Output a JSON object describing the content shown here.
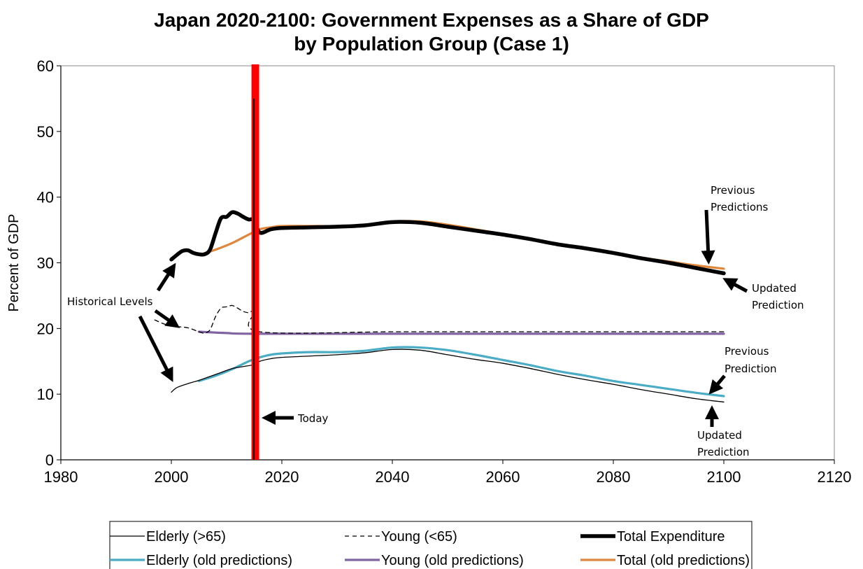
{
  "chart_data": {
    "type": "line",
    "title": [
      "Japan 2020-2100: Government Expenses as a Share of GDP",
      "by Population Group (Case 1)"
    ],
    "ylabel": "Percent of GDP",
    "xlabel": "",
    "xlim": [
      1980,
      2120
    ],
    "ylim": [
      0,
      60
    ],
    "xticks": [
      1980,
      2000,
      2020,
      2040,
      2060,
      2080,
      2100,
      2120
    ],
    "yticks": [
      0,
      10,
      20,
      30,
      40,
      50,
      60
    ],
    "grid": false,
    "series": [
      {
        "name": "Elderly (>65)",
        "color": "#000000",
        "dash": "solid",
        "weight": "thin",
        "points": [
          [
            2000,
            10.3
          ],
          [
            2001,
            11.0
          ],
          [
            2003,
            11.6
          ],
          [
            2005,
            12.1
          ],
          [
            2007,
            12.7
          ],
          [
            2009,
            13.3
          ],
          [
            2011,
            13.9
          ],
          [
            2013,
            14.2
          ],
          [
            2015,
            14.5
          ],
          [
            2016,
            15.0
          ],
          [
            2018,
            15.4
          ],
          [
            2020,
            15.6
          ],
          [
            2025,
            15.8
          ],
          [
            2030,
            16.0
          ],
          [
            2035,
            16.3
          ],
          [
            2040,
            16.8
          ],
          [
            2045,
            16.7
          ],
          [
            2050,
            16.0
          ],
          [
            2055,
            15.3
          ],
          [
            2060,
            14.7
          ],
          [
            2065,
            13.9
          ],
          [
            2070,
            13.0
          ],
          [
            2075,
            12.2
          ],
          [
            2080,
            11.5
          ],
          [
            2085,
            10.7
          ],
          [
            2090,
            10.0
          ],
          [
            2095,
            9.3
          ],
          [
            2100,
            8.8
          ]
        ]
      },
      {
        "name": "Young (<65)",
        "color": "#000000",
        "dash": "dashed",
        "weight": "thin",
        "points": [
          [
            1997,
            21.3
          ],
          [
            1999,
            20.6
          ],
          [
            2001,
            20.3
          ],
          [
            2003,
            20.1
          ],
          [
            2005,
            19.5
          ],
          [
            2006,
            19.3
          ],
          [
            2007,
            19.8
          ],
          [
            2008,
            21.8
          ],
          [
            2009,
            23.1
          ],
          [
            2010,
            23.3
          ],
          [
            2011,
            23.5
          ],
          [
            2012,
            23.1
          ],
          [
            2013,
            22.6
          ],
          [
            2014,
            22.4
          ],
          [
            2015,
            22.5
          ],
          [
            2016,
            19.5
          ],
          [
            2040,
            19.5
          ],
          [
            2060,
            19.5
          ],
          [
            2080,
            19.5
          ],
          [
            2100,
            19.5
          ]
        ]
      },
      {
        "name": "Total Expenditure",
        "color": "#000000",
        "dash": "solid",
        "weight": "thick",
        "points": [
          [
            2000,
            30.5
          ],
          [
            2001,
            31.2
          ],
          [
            2002,
            31.8
          ],
          [
            2003,
            31.9
          ],
          [
            2004,
            31.5
          ],
          [
            2005,
            31.3
          ],
          [
            2006,
            31.3
          ],
          [
            2007,
            32.0
          ],
          [
            2008,
            34.5
          ],
          [
            2009,
            36.8
          ],
          [
            2010,
            37.0
          ],
          [
            2011,
            37.7
          ],
          [
            2012,
            37.5
          ],
          [
            2013,
            37.0
          ],
          [
            2014,
            36.6
          ],
          [
            2015,
            36.5
          ],
          [
            2016,
            34.6
          ],
          [
            2018,
            35.1
          ],
          [
            2020,
            35.3
          ],
          [
            2025,
            35.4
          ],
          [
            2030,
            35.5
          ],
          [
            2035,
            35.7
          ],
          [
            2040,
            36.2
          ],
          [
            2045,
            36.1
          ],
          [
            2050,
            35.5
          ],
          [
            2055,
            34.9
          ],
          [
            2060,
            34.3
          ],
          [
            2065,
            33.6
          ],
          [
            2070,
            32.8
          ],
          [
            2075,
            32.2
          ],
          [
            2080,
            31.5
          ],
          [
            2085,
            30.7
          ],
          [
            2090,
            30.0
          ],
          [
            2095,
            29.2
          ],
          [
            2100,
            28.4
          ]
        ]
      },
      {
        "name": "Elderly (old predictions)",
        "color": "#4BACC6",
        "dash": "solid",
        "weight": "medium",
        "points": [
          [
            2005,
            12.0
          ],
          [
            2008,
            12.8
          ],
          [
            2011,
            13.8
          ],
          [
            2014,
            15.0
          ],
          [
            2016,
            15.6
          ],
          [
            2018,
            16.0
          ],
          [
            2020,
            16.2
          ],
          [
            2025,
            16.4
          ],
          [
            2030,
            16.4
          ],
          [
            2035,
            16.6
          ],
          [
            2040,
            17.1
          ],
          [
            2045,
            17.1
          ],
          [
            2050,
            16.7
          ],
          [
            2055,
            16.0
          ],
          [
            2060,
            15.2
          ],
          [
            2065,
            14.4
          ],
          [
            2070,
            13.5
          ],
          [
            2075,
            12.8
          ],
          [
            2080,
            12.0
          ],
          [
            2085,
            11.4
          ],
          [
            2090,
            10.8
          ],
          [
            2095,
            10.2
          ],
          [
            2100,
            9.7
          ]
        ]
      },
      {
        "name": "Young (old predictions)",
        "color": "#8064A2",
        "dash": "solid",
        "weight": "medium",
        "points": [
          [
            2005,
            19.5
          ],
          [
            2010,
            19.3
          ],
          [
            2015,
            19.2
          ],
          [
            2040,
            19.2
          ],
          [
            2060,
            19.2
          ],
          [
            2080,
            19.2
          ],
          [
            2100,
            19.2
          ]
        ]
      },
      {
        "name": "Total (old predictions)",
        "color": "#E0863A",
        "dash": "solid",
        "weight": "medium",
        "points": [
          [
            2005,
            31.2
          ],
          [
            2008,
            32.0
          ],
          [
            2011,
            33.0
          ],
          [
            2014,
            34.3
          ],
          [
            2016,
            35.1
          ],
          [
            2018,
            35.4
          ],
          [
            2020,
            35.6
          ],
          [
            2025,
            35.6
          ],
          [
            2030,
            35.6
          ],
          [
            2035,
            35.8
          ],
          [
            2040,
            36.3
          ],
          [
            2045,
            36.3
          ],
          [
            2050,
            35.8
          ],
          [
            2055,
            35.1
          ],
          [
            2060,
            34.4
          ],
          [
            2065,
            33.6
          ],
          [
            2070,
            32.8
          ],
          [
            2075,
            32.1
          ],
          [
            2080,
            31.4
          ],
          [
            2085,
            30.8
          ],
          [
            2090,
            30.2
          ],
          [
            2095,
            29.6
          ],
          [
            2100,
            29.1
          ]
        ]
      }
    ],
    "today_line": {
      "x": 2015.2,
      "color": "#FF0000",
      "label": "Today"
    },
    "annotations": [
      {
        "text": [
          "Historical Levels"
        ]
      },
      {
        "text": [
          "Previous",
          "Predictions"
        ]
      },
      {
        "text": [
          "Updated",
          "Prediction"
        ]
      },
      {
        "text": [
          "Previous",
          "Prediction"
        ]
      },
      {
        "text": [
          "Updated",
          "Prediction"
        ]
      },
      {
        "text": [
          "Today"
        ]
      }
    ],
    "legend": {
      "placement": "bottom",
      "entries": [
        "Elderly (>65)",
        "Young (<65)",
        "Total Expenditure",
        "Elderly (old predictions)",
        "Young (old predictions)",
        "Total (old predictions)"
      ]
    }
  }
}
